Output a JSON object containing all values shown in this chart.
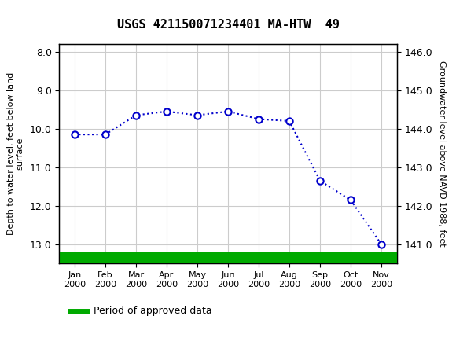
{
  "title": "USGS 421150071234401 MA-HTW  49",
  "x_labels": [
    "Jan\n2000",
    "Feb\n2000",
    "Mar\n2000",
    "Apr\n2000",
    "May\n2000",
    "Jun\n2000",
    "Jul\n2000",
    "Aug\n2000",
    "Sep\n2000",
    "Oct\n2000",
    "Nov\n2000"
  ],
  "x_positions": [
    0,
    1,
    2,
    3,
    4,
    5,
    6,
    7,
    8,
    9,
    10
  ],
  "depth_values": [
    10.15,
    10.15,
    9.65,
    9.55,
    9.65,
    9.55,
    9.75,
    9.8,
    11.35,
    11.85,
    13.0
  ],
  "ylabel_left": "Depth to water level, feet below land\nsurface",
  "ylabel_right": "Groundwater level above NAVD 1988, feet",
  "ylim_left": [
    13.5,
    7.8
  ],
  "ylim_right": [
    140.5,
    146.2
  ],
  "yticks_left": [
    8.0,
    9.0,
    10.0,
    11.0,
    12.0,
    13.0
  ],
  "yticks_right": [
    141.0,
    142.0,
    143.0,
    144.0,
    145.0,
    146.0
  ],
  "line_color": "#0000cc",
  "marker_color": "#0000cc",
  "marker_face": "white",
  "line_style": "dotted",
  "approved_color": "#00aa00",
  "header_bg": "#006633",
  "header_text": "#ffffff",
  "plot_bg": "#f0f0f0",
  "legend_label": "Period of approved data",
  "grid_color": "#cccccc",
  "axis_bg": "#ffffff"
}
